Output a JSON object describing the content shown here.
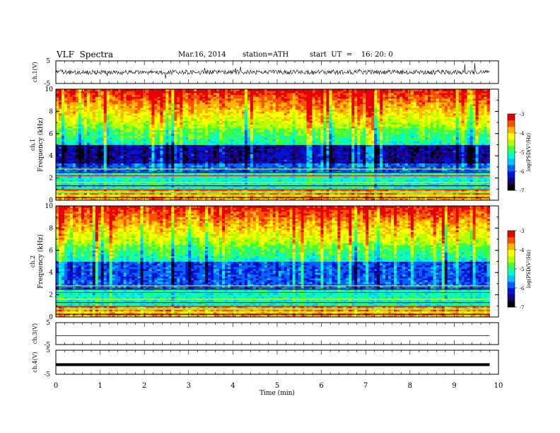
{
  "header": {
    "title": "VLF  Spectra",
    "date": "Mar.16, 2014",
    "station": "station=ATH",
    "start": "start  UT  =    16: 20: 0"
  },
  "colors": {
    "colormap": [
      "#000000",
      "#1a0080",
      "#0014d2",
      "#0064ff",
      "#00c8ff",
      "#00ffc8",
      "#40ff40",
      "#b4ff00",
      "#ffff00",
      "#ffb400",
      "#ff5000",
      "#e60000"
    ],
    "trace": "#000000",
    "axis": "#000000"
  },
  "chart_data": [
    {
      "type": "line",
      "name": "ch1-waveform",
      "ylabel": "ch.1(V)",
      "ylim": [
        -5,
        5
      ],
      "yticks": [
        "5",
        "-5"
      ],
      "xlim": [
        0,
        10
      ],
      "description_values": {
        "mean": 0,
        "amplitude": 1
      }
    },
    {
      "type": "heatmap",
      "name": "ch1-spectrogram",
      "ylabel": "Frequency (kHz)",
      "channel_label": "ch.1",
      "ylim": [
        0,
        10
      ],
      "yticks": [
        "0",
        "2",
        "4",
        "6",
        "8",
        "10"
      ],
      "xlim": [
        0,
        10
      ],
      "data_extent_min": 9.8,
      "colorbar": {
        "label": "log(PSD(V²/Hz)",
        "range": [
          -7,
          -3
        ],
        "ticks": [
          "-3",
          "-4",
          "-5",
          "-6",
          "-7"
        ]
      }
    },
    {
      "type": "heatmap",
      "name": "ch2-spectrogram",
      "ylabel": "Frequency (kHz)",
      "channel_label": "ch.2",
      "ylim": [
        0,
        10
      ],
      "yticks": [
        "0",
        "2",
        "4",
        "6",
        "8",
        "10"
      ],
      "xlim": [
        0,
        10
      ],
      "data_extent_min": 9.8,
      "colorbar": {
        "label": "log(PSD(V²/Hz)",
        "range": [
          -7,
          -3
        ],
        "ticks": [
          "-3",
          "-4",
          "-5",
          "-6",
          "-7"
        ]
      }
    },
    {
      "type": "line",
      "name": "ch3-waveform",
      "ylabel": "ch.3(V)",
      "ylim": [
        -5,
        5
      ],
      "yticks": [
        "5",
        "-5"
      ],
      "xlim": [
        0,
        10
      ],
      "level": -1
    },
    {
      "type": "line",
      "name": "ch4-waveform",
      "ylabel": "ch.4(V)",
      "ylim": [
        -5,
        5
      ],
      "yticks": [
        "5",
        "-5"
      ],
      "xlim": [
        0,
        10
      ],
      "level": -1
    }
  ],
  "xaxis": {
    "label": "Time  (min)",
    "ticks": [
      "0",
      "1",
      "2",
      "3",
      "4",
      "5",
      "6",
      "7",
      "8",
      "9",
      "10"
    ]
  }
}
